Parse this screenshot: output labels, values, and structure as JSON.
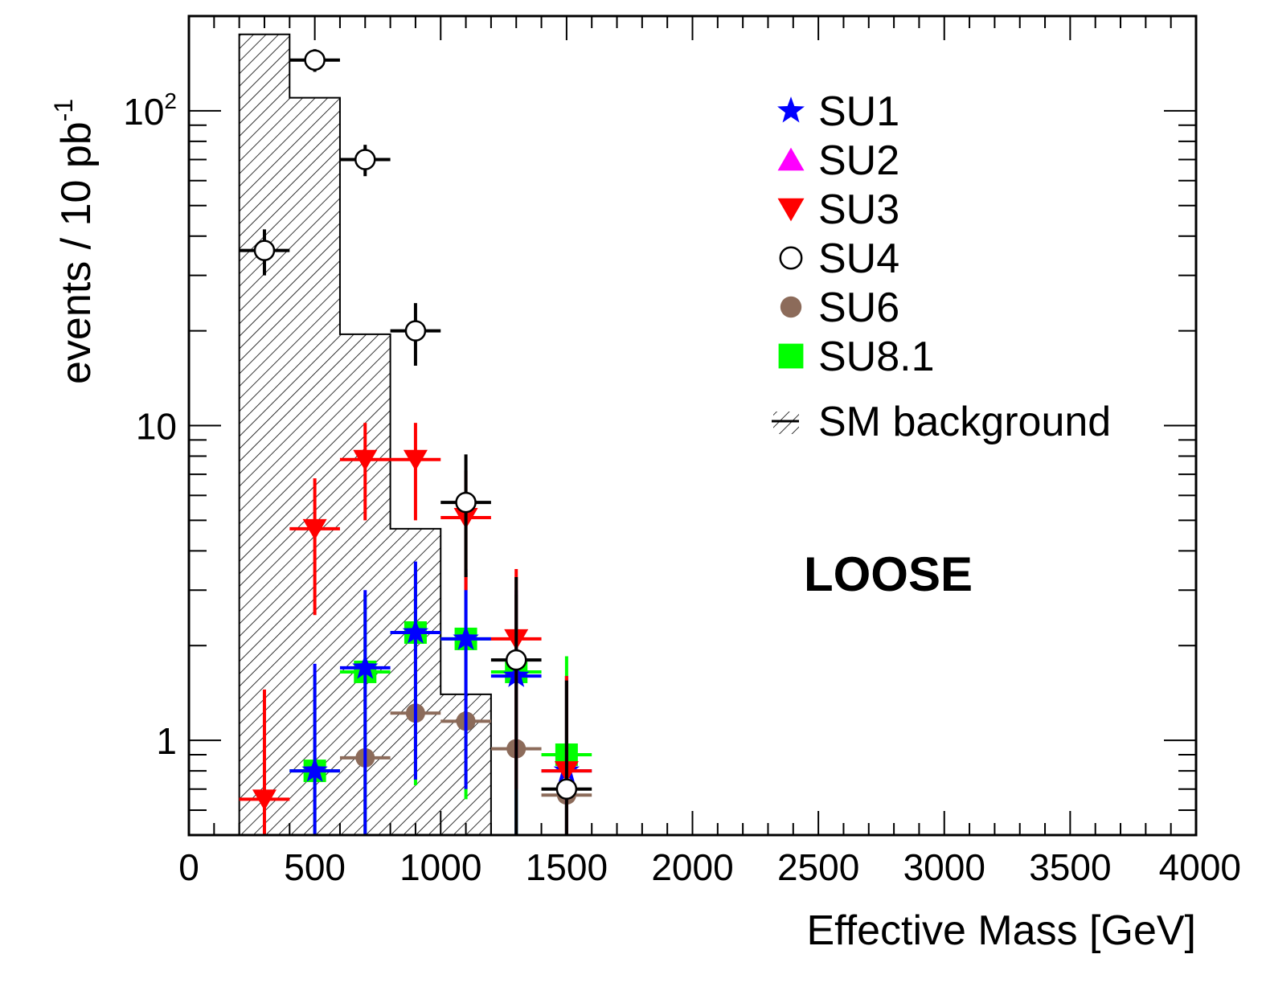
{
  "chart_data": {
    "type": "scatter",
    "title": "",
    "xlabel": "Effective Mass [GeV]",
    "ylabel": "events / 10 pb",
    "ylabel_sup": "-1",
    "xlim": [
      0,
      4000
    ],
    "ylim": [
      0.5,
      200
    ],
    "yscale": "log",
    "x_ticks": [
      {
        "value": 0,
        "label": "0"
      },
      {
        "value": 500,
        "label": "500"
      },
      {
        "value": 1000,
        "label": "1000"
      },
      {
        "value": 1500,
        "label": "1500"
      },
      {
        "value": 2000,
        "label": "2000"
      },
      {
        "value": 2500,
        "label": "2500"
      },
      {
        "value": 3000,
        "label": "3000"
      },
      {
        "value": 3500,
        "label": "3500"
      },
      {
        "value": 4000,
        "label": "4000"
      }
    ],
    "y_ticks": [
      {
        "value": 1,
        "label": "1",
        "sup": ""
      },
      {
        "value": 10,
        "label": "10",
        "sup": ""
      },
      {
        "value": 100,
        "label": "10",
        "sup": "2"
      }
    ],
    "annotation": "LOOSE",
    "legend_position": "top-right",
    "background": {
      "name": "SM background",
      "bin_edges": [
        200,
        400,
        600,
        800,
        1000,
        1200
      ],
      "values": [
        175,
        110,
        19.5,
        4.7,
        1.4
      ],
      "fill": "hatched"
    },
    "series": [
      {
        "name": "SU1",
        "marker": "star",
        "color": "#0000ff",
        "points": [
          {
            "x": 500,
            "y": 0.8,
            "ylo": 0.5,
            "yhi": 1.75
          },
          {
            "x": 700,
            "y": 1.7,
            "ylo": 0.5,
            "yhi": 3.0
          },
          {
            "x": 900,
            "y": 2.2,
            "ylo": 0.75,
            "yhi": 3.7
          },
          {
            "x": 1100,
            "y": 2.1,
            "ylo": 0.7,
            "yhi": 3.5
          },
          {
            "x": 1300,
            "y": 1.6,
            "ylo": 0.5,
            "yhi": 3.0
          },
          {
            "x": 1500,
            "y": 0.8,
            "ylo": 0.5,
            "yhi": 1.6
          }
        ]
      },
      {
        "name": "SU2",
        "marker": "triangle-up",
        "color": "#ff00ff",
        "points": []
      },
      {
        "name": "SU3",
        "marker": "triangle-down",
        "color": "#ff0000",
        "points": [
          {
            "x": 300,
            "y": 0.65,
            "ylo": 0.5,
            "yhi": 1.45
          },
          {
            "x": 500,
            "y": 4.7,
            "ylo": 2.5,
            "yhi": 6.8
          },
          {
            "x": 700,
            "y": 7.8,
            "ylo": 5.0,
            "yhi": 10.2
          },
          {
            "x": 900,
            "y": 7.8,
            "ylo": 5.0,
            "yhi": 10.2
          },
          {
            "x": 1100,
            "y": 5.1,
            "ylo": 3.0,
            "yhi": 7.2
          },
          {
            "x": 1300,
            "y": 2.1,
            "ylo": 0.7,
            "yhi": 3.5
          },
          {
            "x": 1500,
            "y": 0.8,
            "ylo": 0.5,
            "yhi": 1.6
          }
        ]
      },
      {
        "name": "SU4",
        "marker": "circle-open",
        "color": "#000000",
        "points": [
          {
            "x": 300,
            "y": 36,
            "ylo": 30,
            "yhi": 42
          },
          {
            "x": 500,
            "y": 145,
            "ylo": 133,
            "yhi": 157
          },
          {
            "x": 700,
            "y": 70,
            "ylo": 62,
            "yhi": 78
          },
          {
            "x": 900,
            "y": 20,
            "ylo": 15.5,
            "yhi": 24.5
          },
          {
            "x": 1100,
            "y": 5.7,
            "ylo": 3.3,
            "yhi": 8.1
          },
          {
            "x": 1300,
            "y": 1.8,
            "ylo": 0.5,
            "yhi": 3.3
          },
          {
            "x": 1500,
            "y": 0.7,
            "ylo": 0.5,
            "yhi": 1.55
          }
        ]
      },
      {
        "name": "SU6",
        "marker": "circle-filled",
        "color": "#8c6b5a",
        "points": [
          {
            "x": 700,
            "y": 0.88
          },
          {
            "x": 900,
            "y": 1.22
          },
          {
            "x": 1100,
            "y": 1.15
          },
          {
            "x": 1300,
            "y": 0.94
          },
          {
            "x": 1500,
            "y": 0.67
          }
        ]
      },
      {
        "name": "SU8.1",
        "marker": "square",
        "color": "#00ff00",
        "points": [
          {
            "x": 500,
            "y": 0.8,
            "ylo": 0.5,
            "yhi": 1.6
          },
          {
            "x": 700,
            "y": 1.65,
            "ylo": 0.5,
            "yhi": 2.9
          },
          {
            "x": 900,
            "y": 2.2,
            "ylo": 0.72,
            "yhi": 3.6
          },
          {
            "x": 1100,
            "y": 2.1,
            "ylo": 0.65,
            "yhi": 3.4
          },
          {
            "x": 1300,
            "y": 1.65,
            "ylo": 0.5,
            "yhi": 2.9
          },
          {
            "x": 1500,
            "y": 0.9,
            "ylo": 0.5,
            "yhi": 1.85
          }
        ]
      }
    ]
  }
}
